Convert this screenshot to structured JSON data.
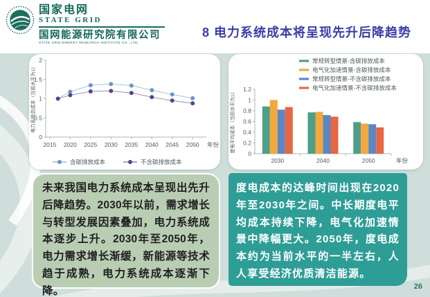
{
  "header": {
    "logo": {
      "cn_name": "国家电网",
      "en_name": "STATE GRID",
      "org_cn": "国网能源研究院有限公司",
      "org_en": "STATE GRID ENERGY RESEARCH INSTITUTE CO., LTD."
    },
    "title": "8 电力系统成本将呈现先升后降趋势"
  },
  "chart_data": [
    {
      "type": "line",
      "x": [
        2017,
        2020,
        2025,
        2030,
        2035,
        2040,
        2045,
        2050
      ],
      "series": [
        {
          "name": "含碳排放成本",
          "color": "#6d96c6",
          "values": [
            1.0,
            1.18,
            1.35,
            1.38,
            1.34,
            1.22,
            1.11,
            1.01
          ]
        },
        {
          "name": "不含碳排放成本",
          "color": "#55438f",
          "values": [
            1.0,
            1.09,
            1.19,
            1.2,
            1.15,
            1.04,
            0.95,
            0.88
          ]
        }
      ],
      "xlabel": "年份",
      "ylabel": "电力系统总成本（当前水平为1）",
      "xlim": [
        2014,
        2052
      ],
      "ylim": [
        0,
        2
      ],
      "xticks": [
        2015,
        2020,
        2025,
        2030,
        2035,
        2040,
        2045,
        2050
      ],
      "yticks": [
        0,
        0.5,
        1,
        1.5,
        2
      ],
      "ytick_labels": [
        "0",
        "0.5",
        "1",
        "1.5",
        "2"
      ],
      "legend_position": "bottom",
      "grid": false
    },
    {
      "type": "bar",
      "categories": [
        "2030",
        "2040",
        "2050"
      ],
      "series": [
        {
          "name": "常规转型情景-含碳排放成本",
          "color": "#4f9e88",
          "values": [
            0.88,
            0.77,
            0.59
          ]
        },
        {
          "name": "电气化加速情景-含碳排放成本",
          "color": "#f3a83d",
          "values": [
            1.0,
            0.78,
            0.56
          ]
        },
        {
          "name": "常规转型情景-不含碳排放成本",
          "color": "#5b88c3",
          "values": [
            0.82,
            0.72,
            0.55
          ]
        },
        {
          "name": "电气化加速情景-不含碳排放成本",
          "color": "#e66742",
          "values": [
            0.87,
            0.69,
            0.49
          ]
        }
      ],
      "xlabel": "年份",
      "ylabel": "度电平均成本（当前水平为1）",
      "ylim": [
        0,
        1.2
      ],
      "yticks": [
        0,
        0.2,
        0.4,
        0.6,
        0.8,
        1,
        1.2
      ],
      "ytick_labels": [
        "0",
        "0.2",
        "0.4",
        "0.6",
        "0.8",
        "1",
        "1.2"
      ],
      "legend_position": "top-right",
      "grid": false
    }
  ],
  "text_boxes": {
    "left": "未来我国电力系统成本呈现出先升后降趋势。2030年以前，需求增长与转型发展因素叠加，电力系统成本逐步上升。2030年至2050年，电力需求增长渐缓，新能源等技术趋于成熟，电力系统成本逐渐下降。",
    "right": "度电成本的达峰时间出现在2020年至2030年之间。中长期度电平均成本持续下降，电气化加速情景中降幅更大。2050年，度电成本约为当前水平的一半左右，人人享受经济优质清洁能源。"
  },
  "page_number": "26",
  "colors": {
    "background": "#cfdeda",
    "title_blue": "#3c3ca8",
    "logo_green": "#17695a",
    "textbox_green": "#b9cdb3",
    "textbox_teal": "#2e9d96",
    "page_number_green": "#2e7468"
  }
}
